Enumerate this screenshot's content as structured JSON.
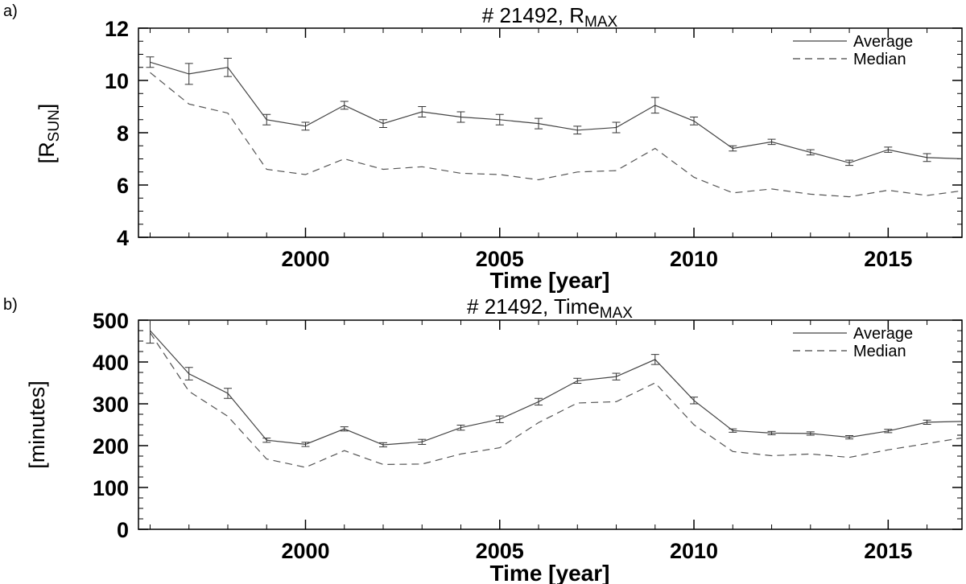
{
  "chart_data": [
    {
      "type": "line",
      "panel_label": "a)",
      "title": "# 21492, R",
      "title_subscript": "MAX",
      "xlabel": "Time [year]",
      "ylabel": "[R",
      "ylabel_subscript": "SUN",
      "ylabel_close": "]",
      "xlim": [
        1995.7,
        2016.9
      ],
      "ylim": [
        4,
        12
      ],
      "xticks": [
        2000,
        2005,
        2010,
        2015
      ],
      "yticks": [
        4,
        6,
        8,
        10,
        12
      ],
      "grid": false,
      "legend_position": "top-right",
      "x": [
        1996,
        1997,
        1998,
        1999,
        2000,
        2001,
        2002,
        2003,
        2004,
        2005,
        2006,
        2007,
        2008,
        2009,
        2010,
        2011,
        2012,
        2013,
        2014,
        2015,
        2016,
        2017
      ],
      "series": [
        {
          "name": "Average",
          "style": "solid",
          "values": [
            10.7,
            10.25,
            10.5,
            8.5,
            8.25,
            9.05,
            8.35,
            8.8,
            8.6,
            8.5,
            8.35,
            8.1,
            8.2,
            9.05,
            8.45,
            7.4,
            7.65,
            7.25,
            6.85,
            7.35,
            7.05,
            7.0
          ],
          "errors": [
            0.2,
            0.4,
            0.35,
            0.2,
            0.15,
            0.15,
            0.15,
            0.2,
            0.2,
            0.2,
            0.2,
            0.15,
            0.2,
            0.3,
            0.15,
            0.1,
            0.1,
            0.1,
            0.1,
            0.1,
            0.15,
            0.2
          ]
        },
        {
          "name": "Median",
          "style": "dashed",
          "values": [
            10.3,
            9.1,
            8.75,
            6.6,
            6.4,
            7.0,
            6.6,
            6.7,
            6.45,
            6.4,
            6.2,
            6.5,
            6.55,
            7.4,
            6.3,
            5.7,
            5.85,
            5.65,
            5.55,
            5.8,
            5.6,
            5.8
          ]
        }
      ]
    },
    {
      "type": "line",
      "panel_label": "b)",
      "title": "# 21492, Time",
      "title_subscript": "MAX",
      "xlabel": "Time [year]",
      "ylabel": "[minutes]",
      "ylabel_subscript": "",
      "ylabel_close": "",
      "xlim": [
        1995.7,
        2016.9
      ],
      "ylim": [
        0,
        500
      ],
      "xticks": [
        2000,
        2005,
        2010,
        2015
      ],
      "yticks": [
        0,
        100,
        200,
        300,
        400,
        500
      ],
      "grid": false,
      "legend_position": "top-right",
      "x": [
        1996,
        1997,
        1998,
        1999,
        2000,
        2001,
        2002,
        2003,
        2004,
        2005,
        2006,
        2007,
        2008,
        2009,
        2010,
        2011,
        2012,
        2013,
        2014,
        2015,
        2016,
        2017
      ],
      "series": [
        {
          "name": "Average",
          "style": "solid",
          "values": [
            475,
            372,
            325,
            213,
            203,
            240,
            202,
            209,
            243,
            263,
            305,
            355,
            365,
            406,
            308,
            236,
            230,
            229,
            220,
            235,
            256,
            258
          ],
          "errors": [
            30,
            15,
            12,
            5,
            5,
            5,
            5,
            6,
            6,
            8,
            8,
            6,
            8,
            12,
            8,
            4,
            4,
            4,
            4,
            4,
            5,
            5
          ]
        },
        {
          "name": "Median",
          "style": "dashed",
          "values": [
            470,
            330,
            270,
            168,
            148,
            188,
            155,
            156,
            180,
            195,
            255,
            302,
            305,
            350,
            250,
            186,
            176,
            180,
            172,
            190,
            205,
            220
          ]
        }
      ]
    }
  ]
}
